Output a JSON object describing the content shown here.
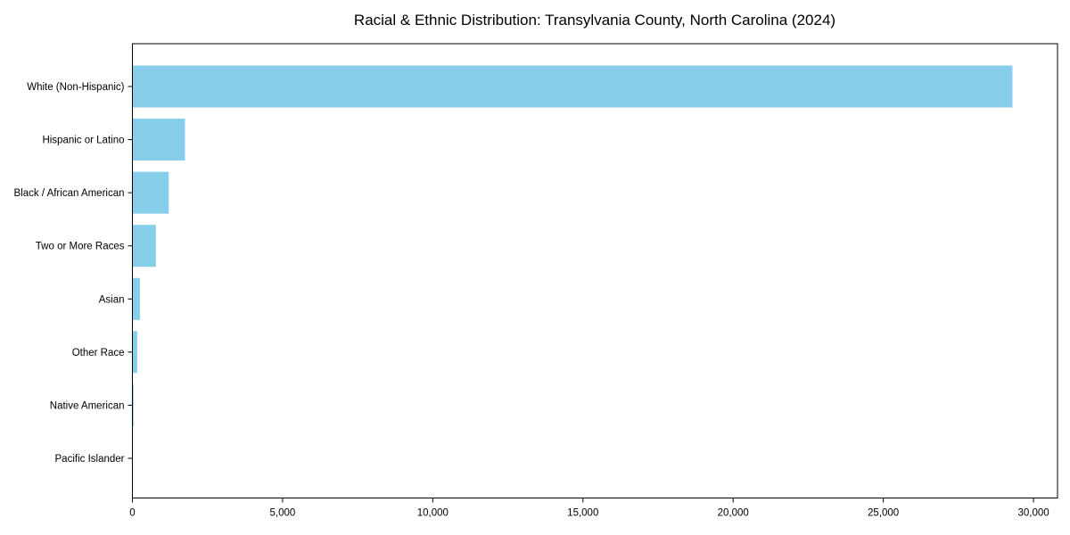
{
  "figure": {
    "background": "#ffffff"
  },
  "chart_data": {
    "type": "bar",
    "orientation": "horizontal",
    "title": "Racial & Ethnic Distribution: Transylvania County, North Carolina (2024)",
    "categories": [
      "White (Non-Hispanic)",
      "Hispanic or Latino",
      "Black / African American",
      "Two or More Races",
      "Asian",
      "Other Race",
      "Native American",
      "Pacific Islander"
    ],
    "values": [
      29300,
      1750,
      1210,
      780,
      250,
      160,
      40,
      10
    ],
    "xlabel": "",
    "ylabel": "",
    "xlim": [
      0,
      30800
    ],
    "x_ticks": [
      0,
      5000,
      10000,
      15000,
      20000,
      25000,
      30000
    ],
    "x_tick_labels": [
      "0",
      "5,000",
      "10,000",
      "15,000",
      "20,000",
      "25,000",
      "30,000"
    ],
    "grid": false,
    "legend": "none",
    "bar_color": "#87CEEB",
    "axis_color": "#000000",
    "text_color": "#000000"
  }
}
